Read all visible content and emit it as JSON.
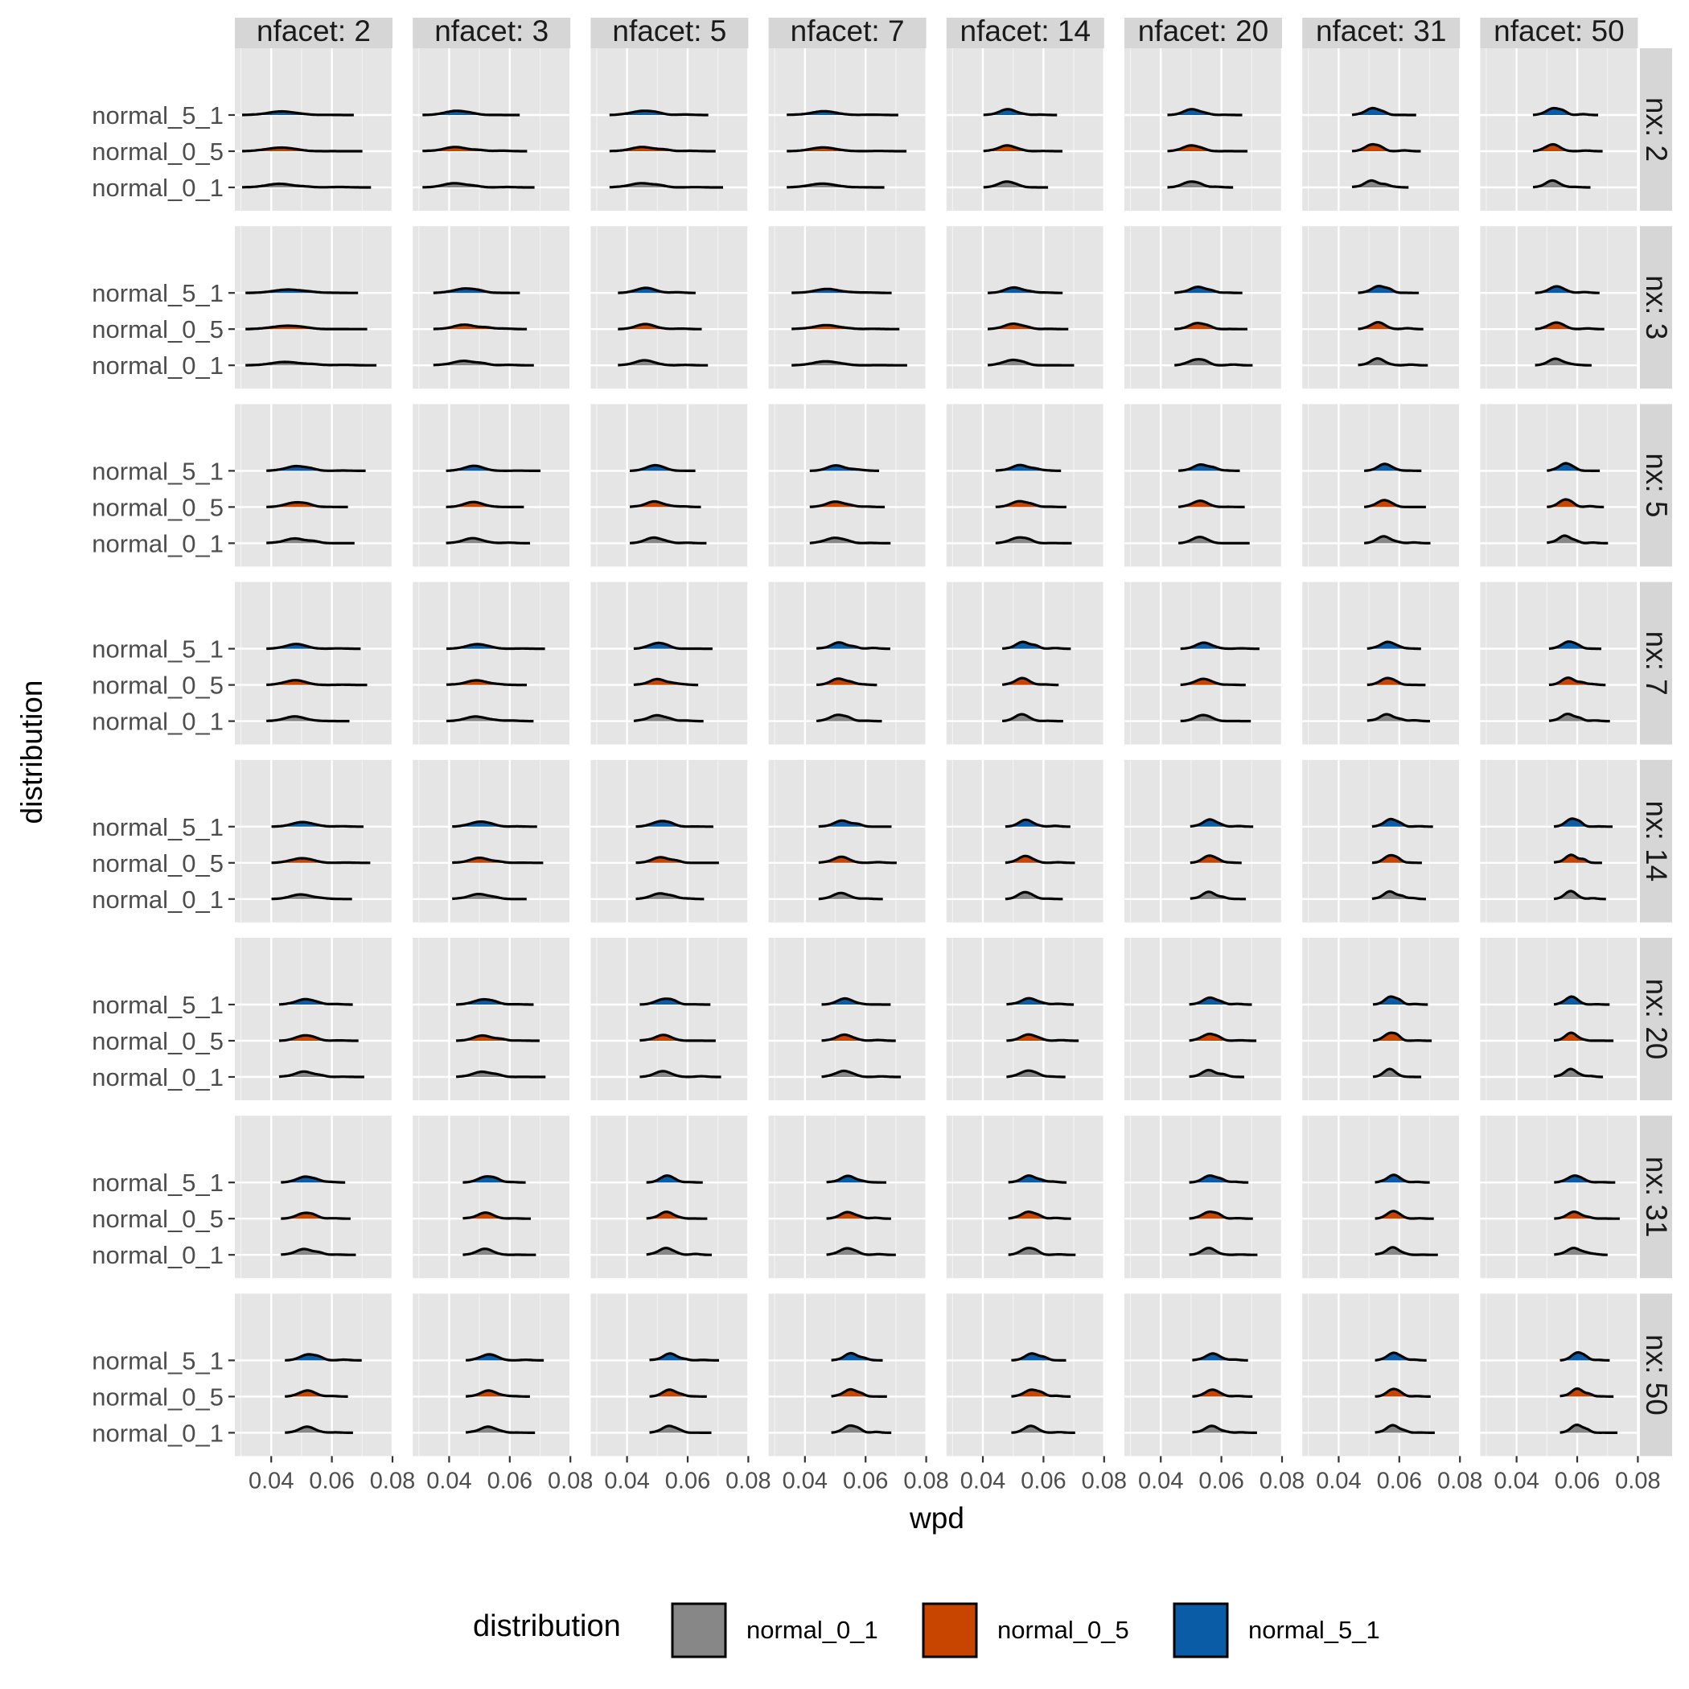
{
  "chart_data": {
    "type": "ridgeline",
    "facet_cols": {
      "variable": "nfacet",
      "labels": [
        "nfacet: 2",
        "nfacet: 3",
        "nfacet: 5",
        "nfacet: 7",
        "nfacet: 14",
        "nfacet: 20",
        "nfacet: 31",
        "nfacet: 50"
      ],
      "values": [
        2,
        3,
        5,
        7,
        14,
        20,
        31,
        50
      ]
    },
    "facet_rows": {
      "variable": "nx",
      "labels": [
        "nx: 2",
        "nx: 3",
        "nx: 5",
        "nx: 7",
        "nx: 14",
        "nx: 20",
        "nx: 31",
        "nx: 50"
      ],
      "values": [
        2,
        3,
        5,
        7,
        14,
        20,
        31,
        50
      ]
    },
    "categories": [
      "normal_0_1",
      "normal_0_5",
      "normal_5_1"
    ],
    "xlabel": "wpd",
    "ylabel": "distribution",
    "x_ticks": [
      0.04,
      0.06,
      0.08
    ],
    "x_tick_labels": [
      "0.04",
      "0.06",
      "0.08"
    ],
    "xlim": [
      0.028,
      0.08
    ],
    "legend": {
      "title": "distribution",
      "position": "bottom",
      "entries": [
        {
          "label": "normal_0_1",
          "color": "#878787"
        },
        {
          "label": "normal_0_5",
          "color": "#C84500"
        },
        {
          "label": "normal_5_1",
          "color": "#0B5CA6"
        }
      ]
    },
    "panel_background": "#E5E5E5",
    "strip_background": "#D6D6D6",
    "density_outline": "#000000",
    "ridge_scale": 1.2,
    "approx_mode_wpd": [
      [
        0.043,
        0.042,
        0.045,
        0.046,
        0.048,
        0.05,
        0.051,
        0.052
      ],
      [
        0.045,
        0.045,
        0.046,
        0.047,
        0.05,
        0.052,
        0.053,
        0.053
      ],
      [
        0.048,
        0.048,
        0.049,
        0.05,
        0.052,
        0.053,
        0.055,
        0.056
      ],
      [
        0.048,
        0.049,
        0.05,
        0.051,
        0.053,
        0.054,
        0.056,
        0.057
      ],
      [
        0.05,
        0.05,
        0.051,
        0.052,
        0.054,
        0.056,
        0.057,
        0.058
      ],
      [
        0.051,
        0.051,
        0.052,
        0.053,
        0.055,
        0.056,
        0.057,
        0.058
      ],
      [
        0.051,
        0.052,
        0.053,
        0.054,
        0.055,
        0.056,
        0.058,
        0.059
      ],
      [
        0.052,
        0.053,
        0.054,
        0.055,
        0.056,
        0.057,
        0.058,
        0.06
      ]
    ],
    "approx_sd_wpd": [
      [
        0.0042,
        0.0036,
        0.0036,
        0.004,
        0.0026,
        0.0026,
        0.0022,
        0.0022
      ],
      [
        0.0045,
        0.0034,
        0.003,
        0.0038,
        0.0028,
        0.0025,
        0.0022,
        0.0023
      ],
      [
        0.0032,
        0.003,
        0.0027,
        0.0028,
        0.0026,
        0.0024,
        0.0022,
        0.002
      ],
      [
        0.0032,
        0.0033,
        0.0026,
        0.0024,
        0.0022,
        0.0025,
        0.0022,
        0.0021
      ],
      [
        0.0033,
        0.003,
        0.0027,
        0.0025,
        0.0022,
        0.0021,
        0.002,
        0.0019
      ],
      [
        0.0028,
        0.0029,
        0.0026,
        0.0025,
        0.0024,
        0.0022,
        0.0019,
        0.0019
      ],
      [
        0.0026,
        0.0025,
        0.0022,
        0.0023,
        0.0022,
        0.0022,
        0.002,
        0.0022
      ],
      [
        0.0025,
        0.0025,
        0.0022,
        0.0021,
        0.0022,
        0.0022,
        0.002,
        0.0019
      ]
    ]
  }
}
